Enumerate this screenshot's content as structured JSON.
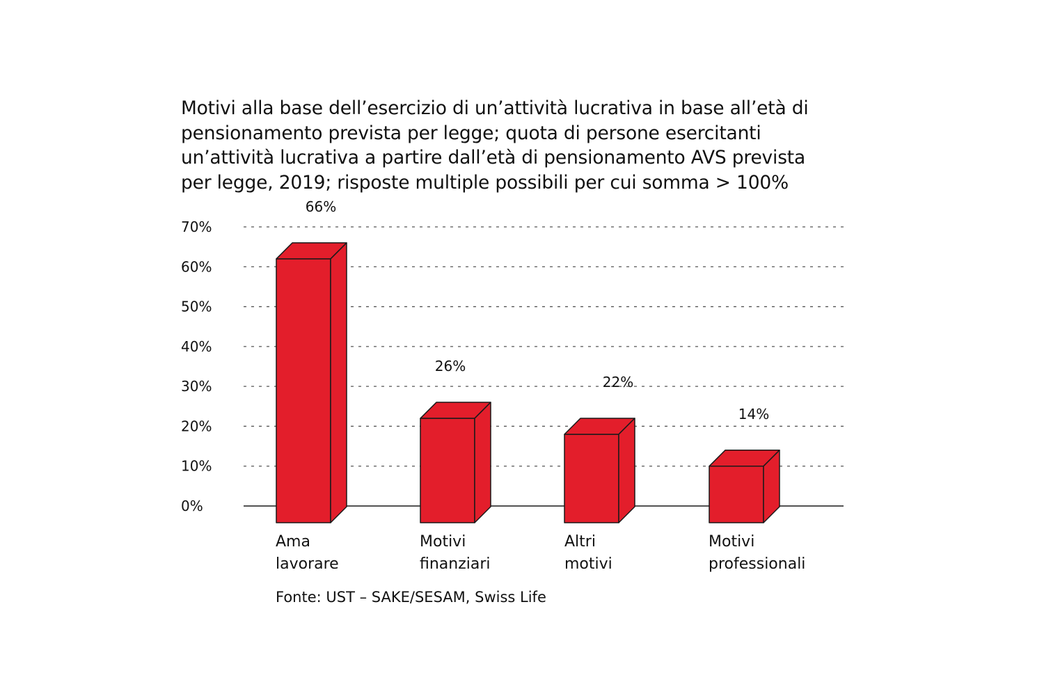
{
  "title_lines": [
    "Motivi alla base dell’esercizio di un’attività lucrativa in base all’età di",
    "pensionamento prevista per legge; quota di persone esercitanti",
    "un’attività lucrativa a partire dall’età di pensionamento AVS prevista",
    "per legge, 2019; risposte multiple possibili per cui somma > 100%"
  ],
  "source": "Fonte: UST – SAKE/SESAM, Swiss Life",
  "colors": {
    "bar": "#e31e2b",
    "outline": "#1a1a1a",
    "grid": "#555555"
  },
  "chart_data": {
    "type": "bar",
    "categories": [
      [
        "Ama",
        "lavorare"
      ],
      [
        "Motivi",
        "finanziari"
      ],
      [
        "Altri",
        "motivi"
      ],
      [
        "Motivi",
        "professionali"
      ]
    ],
    "values": [
      66,
      26,
      22,
      14
    ],
    "data_labels": [
      "66%",
      "26%",
      "22%",
      "14%"
    ],
    "yticks": [
      "0%",
      "10%",
      "20%",
      "30%",
      "40%",
      "50%",
      "60%",
      "70%"
    ],
    "ylim": [
      0,
      70
    ],
    "grid": true,
    "grid_style": "dashed",
    "bar_style": "3d"
  }
}
